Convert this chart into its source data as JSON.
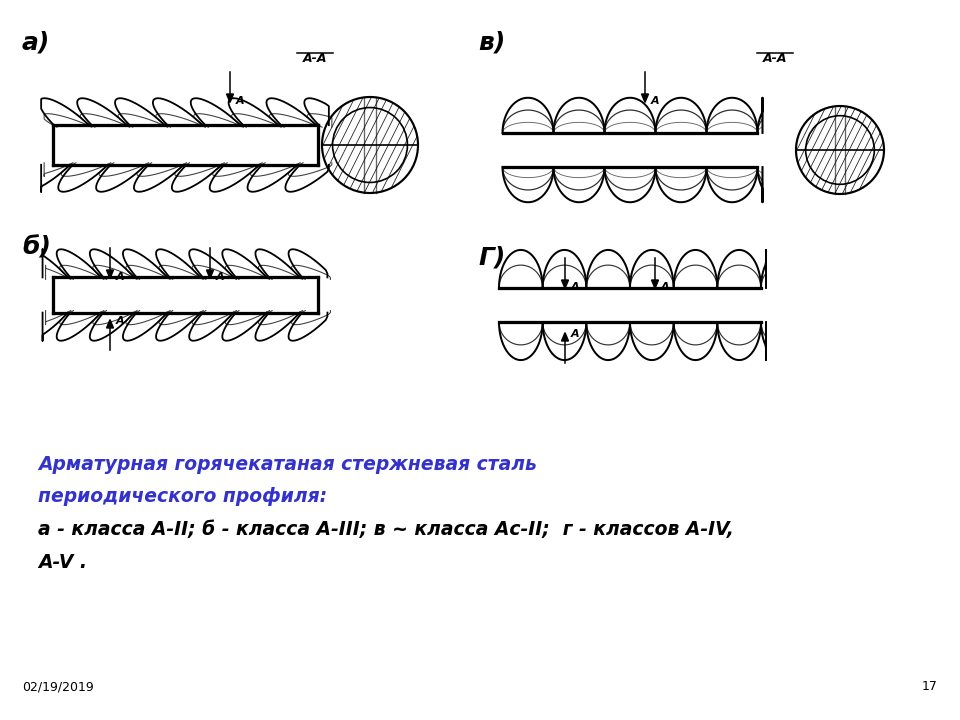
{
  "bg_color": "#ffffff",
  "text_color_blue": "#3333cc",
  "text_color_black": "#000000",
  "label_a": "а)",
  "label_b": "б)",
  "label_v": "в)",
  "label_g": "Г)",
  "caption_line1": "Арматурная горячекатаная стержневая сталь",
  "caption_line2": "периодического профиля:",
  "caption_line3": "а - класса A-II; б - класса A-III; в ~ класса Ас-II;  г - классов A-IV,",
  "caption_line4": "A-V .",
  "footer_date": "02/19/2019",
  "footer_page": "17"
}
